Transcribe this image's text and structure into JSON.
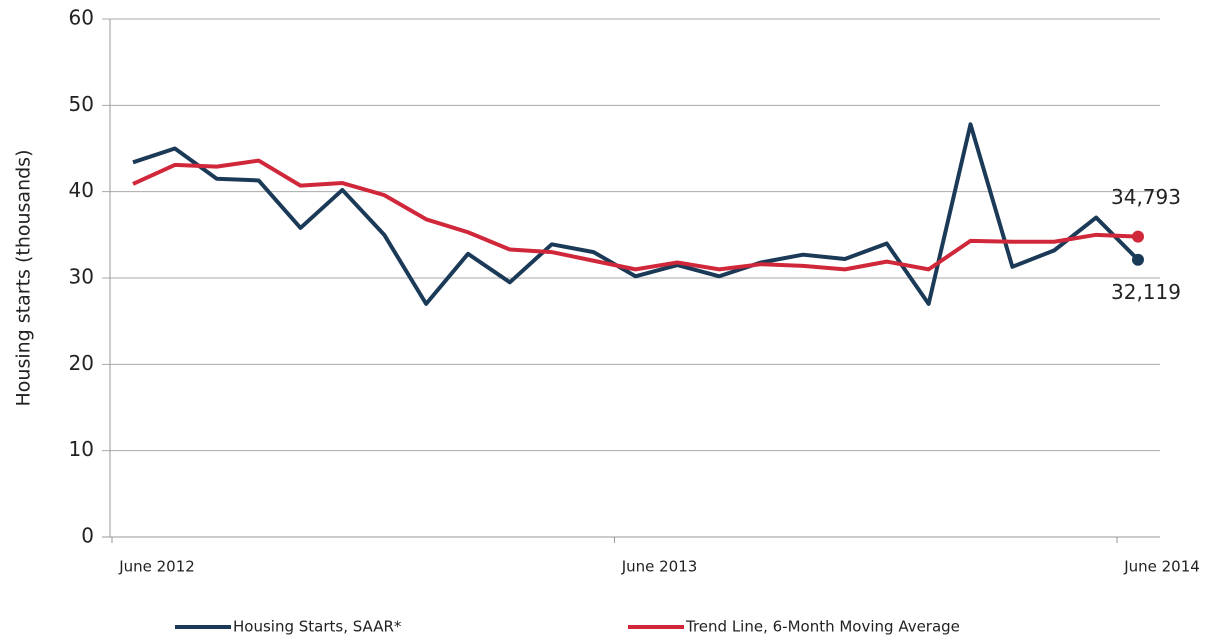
{
  "chart_data": {
    "type": "line",
    "y_label": "Housing starts (thousands)",
    "categories": [
      "June 2012",
      null,
      null,
      null,
      null,
      null,
      null,
      null,
      null,
      null,
      null,
      null,
      "June 2013",
      null,
      null,
      null,
      null,
      null,
      null,
      null,
      null,
      null,
      null,
      null,
      "June 2014"
    ],
    "series": [
      {
        "name": "Housing Starts, SAAR*",
        "color": "#1b3a57",
        "values": [
          43.4,
          45,
          41.5,
          41.3,
          35.8,
          40.2,
          35,
          27,
          32.8,
          29.5,
          33.9,
          33,
          30.2,
          31.5,
          30.2,
          31.8,
          32.7,
          32.2,
          34,
          27,
          47.8,
          31.3,
          33.2,
          37,
          32.119
        ],
        "value_labels": [
          null,
          null,
          null,
          null,
          null,
          null,
          null,
          null,
          null,
          null,
          null,
          null,
          null,
          null,
          null,
          null,
          null,
          null,
          null,
          null,
          null,
          null,
          null,
          null,
          "32,119"
        ]
      },
      {
        "name": "Trend Line, 6-Month Moving Average",
        "color": "#d0283a",
        "values": [
          40.9,
          43.1,
          42.9,
          43.6,
          40.7,
          41,
          39.6,
          36.8,
          35.3,
          33.3,
          33,
          32,
          31,
          31.8,
          31,
          31.6,
          31.4,
          31,
          31.9,
          31,
          34.3,
          34.2,
          34.2,
          35,
          34.793
        ],
        "value_labels": [
          null,
          null,
          null,
          null,
          null,
          null,
          null,
          null,
          null,
          null,
          null,
          null,
          null,
          null,
          null,
          null,
          null,
          null,
          null,
          null,
          null,
          null,
          null,
          null,
          "34,793"
        ]
      }
    ],
    "ylim": [
      0,
      60
    ],
    "yticks": [
      0,
      10,
      20,
      30,
      40,
      50,
      60
    ],
    "grid": true
  }
}
